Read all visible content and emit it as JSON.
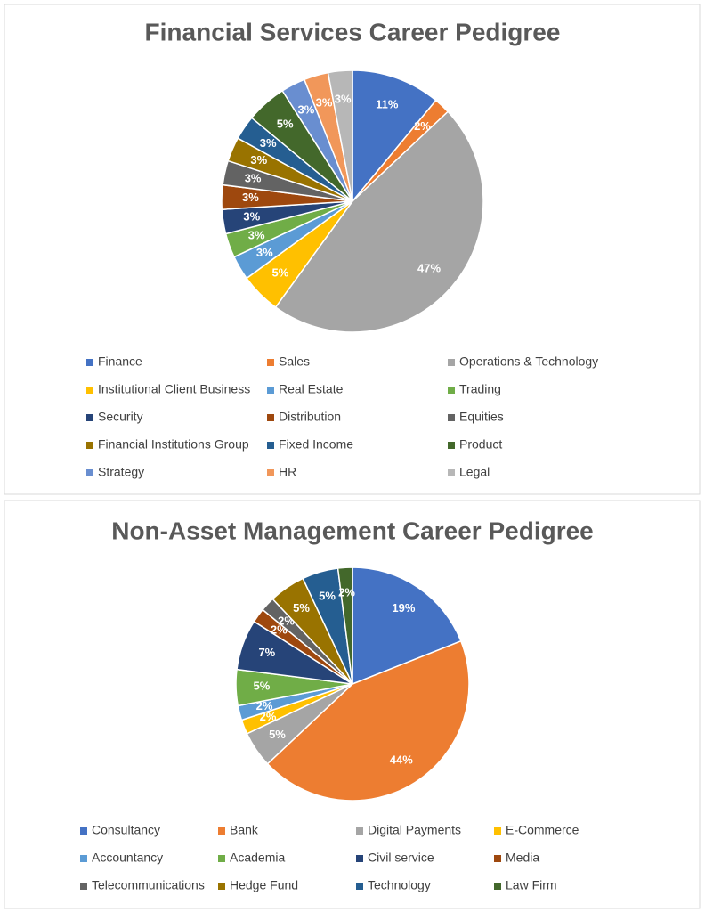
{
  "chart_data": [
    {
      "type": "pie",
      "title": "Financial Services Career Pedigree",
      "categories": [
        "Finance",
        "Sales",
        "Operations & Technology",
        "Institutional Client Business",
        "Real Estate",
        "Trading",
        "Security",
        "Distribution",
        "Equities",
        "Financial Institutions Group",
        "Fixed Income",
        "Product",
        "Strategy",
        "HR",
        "Legal"
      ],
      "values": [
        11,
        2,
        47,
        5,
        3,
        3,
        3,
        3,
        3,
        3,
        3,
        5,
        3,
        3,
        3
      ],
      "value_labels": [
        "11%",
        "2%",
        "47%",
        "5%",
        "3%",
        "3%",
        "3%",
        "3%",
        "3%",
        "3%",
        "3%",
        "5%",
        "3%",
        "3%",
        "3%"
      ],
      "colors": [
        "#4472c4",
        "#ed7d31",
        "#a5a5a5",
        "#ffc000",
        "#5b9bd5",
        "#70ad47",
        "#264478",
        "#9e480e",
        "#636363",
        "#997300",
        "#255e91",
        "#43682b",
        "#698ed0",
        "#f1975a",
        "#b7b7b7"
      ]
    },
    {
      "type": "pie",
      "title": "Non-Asset Management Career Pedigree",
      "categories": [
        "Consultancy",
        "Bank",
        "Digital Payments",
        "E-Commerce",
        "Accountancy",
        "Academia",
        "Civil service",
        "Media",
        "Telecommunications",
        "Hedge Fund",
        "Technology",
        "Law Firm"
      ],
      "values": [
        19,
        44,
        5,
        2,
        2,
        5,
        7,
        2,
        2,
        5,
        5,
        2
      ],
      "value_labels": [
        "19%",
        "44%",
        "5%",
        "2%",
        "2%",
        "5%",
        "7%",
        "2%",
        "2%",
        "5%",
        "5%",
        "2%"
      ],
      "colors": [
        "#4472c4",
        "#ed7d31",
        "#a5a5a5",
        "#ffc000",
        "#5b9bd5",
        "#70ad47",
        "#264478",
        "#9e480e",
        "#636363",
        "#997300",
        "#255e91",
        "#43682b"
      ]
    }
  ]
}
